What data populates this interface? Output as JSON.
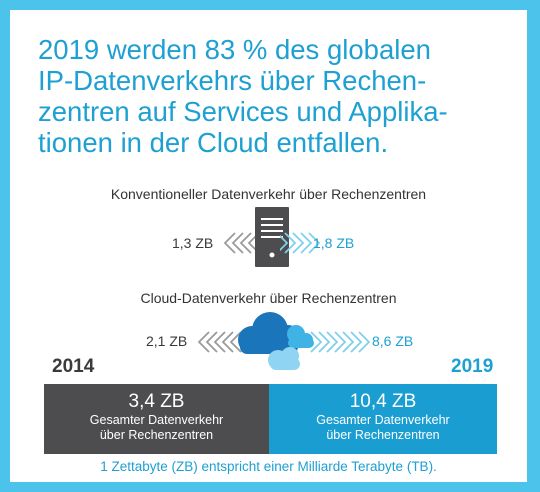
{
  "headline": {
    "lines": [
      "2019 werden 83 % des globalen",
      "IP-Datenverkehrs über Rechen-",
      "zentren auf Services und Applika-",
      "tionen in der Cloud entfallen."
    ]
  },
  "conventional": {
    "title": "Konventioneller Datenverkehr über Rechenzentren",
    "left_value": "1,3 ZB",
    "right_value": "1,8 ZB",
    "icon": "server-icon"
  },
  "cloud": {
    "title": "Cloud-Datenverkehr über Rechenzentren",
    "left_value": "2,1 ZB",
    "right_value": "8,6 ZB",
    "icon": "cloud-icon"
  },
  "years": {
    "left": "2014",
    "right": "2019"
  },
  "totals": {
    "left": {
      "amount": "3,4 ZB",
      "label_line1": "Gesamter Datenverkehr",
      "label_line2": "über Rechenzentren"
    },
    "right": {
      "amount": "10,4 ZB",
      "label_line1": "Gesamter Datenverkehr",
      "label_line2": "über Rechenzentren"
    }
  },
  "footnote": "1 Zettabyte (ZB) entspricht einer Milliarde Terabyte (TB).",
  "colors": {
    "background": "#4cc3ea",
    "accent": "#1ea0d2",
    "dark": "#4d4d4f",
    "bar_right": "#1a9ed1"
  }
}
